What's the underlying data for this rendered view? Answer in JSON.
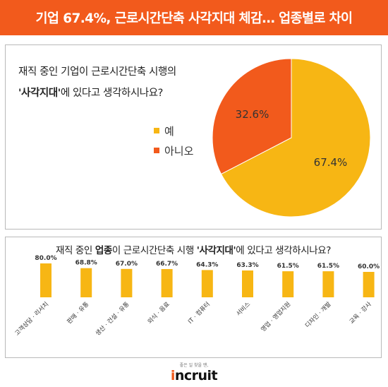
{
  "banner": {
    "title": "기업 67.4%, 근로시간단축 사각지대 체감… 업종별로 차이"
  },
  "question1": {
    "line1": "재직 중인 기업이 근로시간단축 시행의",
    "highlight": "'사각지대'",
    "line2_rest": "에 있다고 생각하시나요?"
  },
  "question2": {
    "prefix": "재직 중인 ",
    "bold1": "업종",
    "middle": "이 근로시간단축 시행 ",
    "bold2": "'사각지대'",
    "suffix": "에 있다고 생각하시나요?"
  },
  "footer": {
    "tagline": "좋은 일 찾을 땐,",
    "logo_prefix": "i",
    "logo_rest": "ncruit"
  },
  "colors": {
    "accent": "#f25a1c",
    "yes": "#f7b614",
    "no": "#f25a1c",
    "bar": "#f7b614"
  },
  "chart_data": [
    {
      "type": "pie",
      "labels": [
        "예",
        "아니오"
      ],
      "values": [
        67.4,
        32.6
      ],
      "value_labels": [
        "67.4%",
        "32.6%"
      ],
      "colors": [
        "#f7b614",
        "#f25a1c"
      ],
      "legend": "left"
    },
    {
      "type": "bar",
      "categories": [
        "고객상담 · 리서치",
        "판매 · 유통",
        "생산 · 건설 · 유통",
        "외식 · 음료",
        "IT · 컴퓨터",
        "서비스",
        "영업 · 영업지원",
        "디자인 · 개발",
        "교육 · 강사"
      ],
      "values": [
        80.0,
        68.8,
        67.0,
        66.7,
        64.3,
        63.3,
        61.5,
        61.5,
        60.0
      ],
      "value_labels": [
        "80.0%",
        "68.8%",
        "67.0%",
        "66.7%",
        "64.3%",
        "63.3%",
        "61.5%",
        "61.5%",
        "60.0%"
      ],
      "ylim": [
        0,
        100
      ],
      "color": "#f7b614",
      "grid": false
    }
  ]
}
